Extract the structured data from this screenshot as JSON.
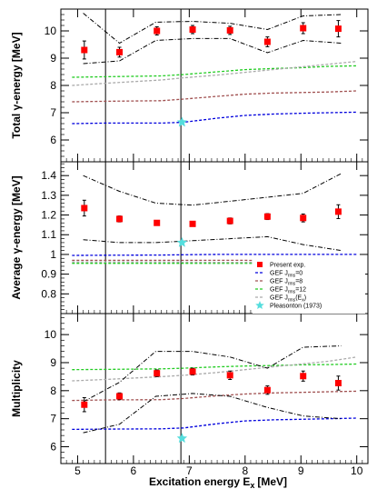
{
  "chart_data": {
    "type": "scatter",
    "xlabel": "Excitation energy E",
    "xlabel_sub": "x",
    "xlabel_unit": "[MeV]",
    "xlim": [
      4.7,
      10.2
    ],
    "xticks": [
      5,
      6,
      7,
      8,
      9,
      10
    ],
    "xtick_labels": [
      "5",
      "6",
      "7",
      "8",
      "9",
      "10"
    ],
    "vertical_lines": [
      5.5,
      6.85
    ],
    "legend": {
      "placement": "right, inside middle panel",
      "entries": [
        {
          "label": "Present exp.",
          "style": "marker",
          "color": "#ff0000"
        },
        {
          "label": "GEF J",
          "sub": "rms",
          "suffix": "=0",
          "style": "dash",
          "color": "#0000dd"
        },
        {
          "label": "GEF J",
          "sub": "rms",
          "suffix": "=8",
          "style": "dash",
          "color": "#a05050"
        },
        {
          "label": "GEF J",
          "sub": "rms",
          "suffix": "=12",
          "style": "dash",
          "color": "#22cc22"
        },
        {
          "label": "GEF J",
          "sub": "rms",
          "suffix": "(E",
          "sub2": "x",
          "suffix2": ")",
          "style": "dash",
          "color": "#aaaaaa"
        },
        {
          "label": "Pleasonton (1973)",
          "style": "star",
          "color": "#55dddd"
        }
      ]
    },
    "panels": [
      {
        "id": "total",
        "ylabel": "Total γ-energy [MeV]",
        "ylim": [
          5.2,
          10.8
        ],
        "yticks": [
          6,
          7,
          8,
          9,
          10
        ],
        "ytick_labels": [
          "6",
          "7",
          "8",
          "9",
          "10"
        ],
        "experiment": {
          "x": [
            5.12,
            5.75,
            6.42,
            7.06,
            7.73,
            8.4,
            9.04,
            9.67
          ],
          "y": [
            9.3,
            9.22,
            10.0,
            10.05,
            10.02,
            9.6,
            10.1,
            10.08
          ],
          "err": [
            0.33,
            0.18,
            0.15,
            0.15,
            0.15,
            0.18,
            0.2,
            0.3
          ]
        },
        "band_upper": {
          "x": [
            5.1,
            5.75,
            6.4,
            7.06,
            7.73,
            8.4,
            9.04,
            9.72
          ],
          "y": [
            10.65,
            9.55,
            10.32,
            10.35,
            10.28,
            10.05,
            10.55,
            10.6
          ]
        },
        "band_lower": {
          "x": [
            5.1,
            5.75,
            6.4,
            7.06,
            7.73,
            8.4,
            9.04,
            9.72
          ],
          "y": [
            8.8,
            8.9,
            9.65,
            9.72,
            9.72,
            9.2,
            9.65,
            9.55
          ]
        },
        "pleasonton": {
          "x": 6.87,
          "y": 6.65
        },
        "series": [
          {
            "name": "GEF J_rms=0",
            "color": "#0000dd",
            "x": [
              4.9,
              5.5,
              6.5,
              6.9,
              7.5,
              8.0,
              8.5,
              9.0,
              9.5,
              10.0
            ],
            "y": [
              6.6,
              6.62,
              6.62,
              6.65,
              6.8,
              6.9,
              6.95,
              6.98,
              7.0,
              7.02
            ]
          },
          {
            "name": "GEF J_rms=8",
            "color": "#a05050",
            "x": [
              4.9,
              5.5,
              6.5,
              6.9,
              7.5,
              8.0,
              8.5,
              9.0,
              9.5,
              10.0
            ],
            "y": [
              7.4,
              7.42,
              7.44,
              7.5,
              7.6,
              7.68,
              7.72,
              7.74,
              7.76,
              7.8
            ]
          },
          {
            "name": "GEF J_rms=12",
            "color": "#22cc22",
            "x": [
              4.9,
              5.5,
              6.5,
              6.9,
              7.5,
              8.0,
              8.5,
              9.0,
              9.5,
              10.0
            ],
            "y": [
              8.3,
              8.32,
              8.35,
              8.4,
              8.5,
              8.58,
              8.62,
              8.65,
              8.7,
              8.72
            ]
          },
          {
            "name": "GEF J_rms(Ex)",
            "color": "#aaaaaa",
            "x": [
              4.9,
              5.5,
              6.5,
              6.9,
              7.5,
              8.0,
              8.5,
              9.0,
              9.5,
              10.0
            ],
            "y": [
              8.0,
              8.08,
              8.2,
              8.28,
              8.38,
              8.48,
              8.58,
              8.68,
              8.78,
              8.88
            ]
          }
        ]
      },
      {
        "id": "average",
        "ylabel": "Average γ-energy [MeV]",
        "ylim": [
          0.7,
          1.47
        ],
        "yticks": [
          0.8,
          0.9,
          1.0,
          1.1,
          1.2,
          1.3,
          1.4
        ],
        "ytick_labels": [
          "0.8",
          "0.9",
          "1",
          "1.1",
          "1.2",
          "1.3",
          "1.4"
        ],
        "experiment": {
          "x": [
            5.12,
            5.75,
            6.42,
            7.06,
            7.73,
            8.4,
            9.04,
            9.67
          ],
          "y": [
            1.235,
            1.18,
            1.16,
            1.155,
            1.17,
            1.192,
            1.185,
            1.217
          ],
          "err": [
            0.04,
            0.015,
            0.012,
            0.012,
            0.015,
            0.015,
            0.02,
            0.035
          ]
        },
        "band_upper": {
          "x": [
            5.1,
            5.75,
            6.4,
            7.06,
            7.73,
            8.4,
            9.04,
            9.72
          ],
          "y": [
            1.4,
            1.32,
            1.26,
            1.25,
            1.27,
            1.29,
            1.31,
            1.41
          ]
        },
        "band_lower": {
          "x": [
            5.1,
            5.75,
            6.4,
            7.06,
            7.73,
            8.4,
            9.04,
            9.72
          ],
          "y": [
            1.075,
            1.06,
            1.06,
            1.07,
            1.08,
            1.09,
            1.05,
            1.02
          ]
        },
        "pleasonton": {
          "x": 6.87,
          "y": 1.06
        },
        "series": [
          {
            "name": "GEF J_rms=0",
            "color": "#0000dd",
            "x": [
              4.9,
              5.5,
              6.5,
              7.0,
              7.5,
              8.0,
              8.5,
              9.0,
              9.5,
              10.0
            ],
            "y": [
              0.995,
              0.996,
              0.997,
              0.999,
              1.0,
              1.0,
              1.0,
              1.0,
              1.0,
              1.0
            ]
          },
          {
            "name": "GEF J_rms=8",
            "color": "#a05050",
            "x": [
              4.9,
              5.5,
              6.5,
              7.0,
              7.5,
              8.0,
              8.5,
              9.0,
              9.5,
              10.0
            ],
            "y": [
              0.97,
              0.97,
              0.97,
              0.97,
              0.97,
              0.97,
              0.968,
              0.965,
              0.963,
              0.962
            ]
          },
          {
            "name": "GEF J_rms=12",
            "color": "#22cc22",
            "x": [
              4.9,
              5.5,
              6.5,
              7.0,
              7.5,
              8.0,
              8.5,
              9.0,
              9.5,
              10.0
            ],
            "y": [
              0.955,
              0.955,
              0.955,
              0.955,
              0.955,
              0.955,
              0.955,
              0.953,
              0.952,
              0.95
            ]
          },
          {
            "name": "GEF J_rms(Ex)",
            "color": "#aaaaaa",
            "x": [
              4.9,
              5.5,
              6.5,
              7.0,
              7.5,
              8.0,
              8.5,
              9.0,
              9.5,
              10.0
            ],
            "y": [
              0.962,
              0.962,
              0.962,
              0.961,
              0.96,
              0.96,
              0.959,
              0.958,
              0.957,
              0.956
            ]
          }
        ]
      },
      {
        "id": "multiplicity",
        "ylabel": "Multiplicity",
        "ylim": [
          5.4,
          10.75
        ],
        "yticks": [
          6,
          7,
          8,
          9,
          10
        ],
        "ytick_labels": [
          "6",
          "7",
          "8",
          "9",
          "10"
        ],
        "experiment": {
          "x": [
            5.12,
            5.75,
            6.42,
            7.06,
            7.73,
            8.4,
            9.04,
            9.67
          ],
          "y": [
            7.5,
            7.8,
            8.62,
            8.68,
            8.55,
            8.02,
            8.52,
            8.27
          ],
          "err": [
            0.25,
            0.12,
            0.12,
            0.12,
            0.15,
            0.15,
            0.18,
            0.25
          ]
        },
        "band_upper": {
          "x": [
            5.1,
            5.75,
            6.4,
            7.06,
            7.73,
            8.4,
            9.04,
            9.72
          ],
          "y": [
            7.6,
            8.3,
            9.4,
            9.4,
            9.2,
            8.8,
            9.55,
            9.6
          ]
        },
        "band_lower": {
          "x": [
            5.1,
            5.75,
            6.4,
            7.06,
            7.73,
            8.4,
            9.04,
            9.72
          ],
          "y": [
            6.5,
            6.8,
            7.8,
            7.9,
            7.8,
            7.4,
            7.1,
            7.0
          ]
        },
        "pleasonton": {
          "x": 6.87,
          "y": 6.3
        },
        "series": [
          {
            "name": "GEF J_rms=0",
            "color": "#0000dd",
            "x": [
              4.9,
              5.5,
              6.5,
              6.9,
              7.5,
              8.0,
              8.5,
              9.0,
              9.5,
              10.0
            ],
            "y": [
              6.62,
              6.63,
              6.64,
              6.67,
              6.82,
              6.92,
              6.96,
              6.98,
              7.0,
              7.02
            ]
          },
          {
            "name": "GEF J_rms=8",
            "color": "#a05050",
            "x": [
              4.9,
              5.5,
              6.5,
              6.9,
              7.5,
              8.0,
              8.5,
              9.0,
              9.5,
              10.0
            ],
            "y": [
              7.65,
              7.67,
              7.68,
              7.72,
              7.82,
              7.88,
              7.92,
              7.94,
              7.96,
              7.98
            ]
          },
          {
            "name": "GEF J_rms=12",
            "color": "#22cc22",
            "x": [
              4.9,
              5.5,
              6.5,
              6.9,
              7.5,
              8.0,
              8.5,
              9.0,
              9.5,
              10.0
            ],
            "y": [
              8.75,
              8.76,
              8.78,
              8.8,
              8.85,
              8.88,
              8.9,
              8.92,
              8.93,
              8.95
            ]
          },
          {
            "name": "GEF J_rms(Ex)",
            "color": "#aaaaaa",
            "x": [
              4.9,
              5.5,
              6.5,
              6.9,
              7.5,
              8.0,
              8.5,
              9.0,
              9.5,
              10.0
            ],
            "y": [
              8.35,
              8.4,
              8.5,
              8.55,
              8.65,
              8.75,
              8.85,
              8.95,
              9.05,
              9.2
            ]
          }
        ]
      }
    ]
  }
}
